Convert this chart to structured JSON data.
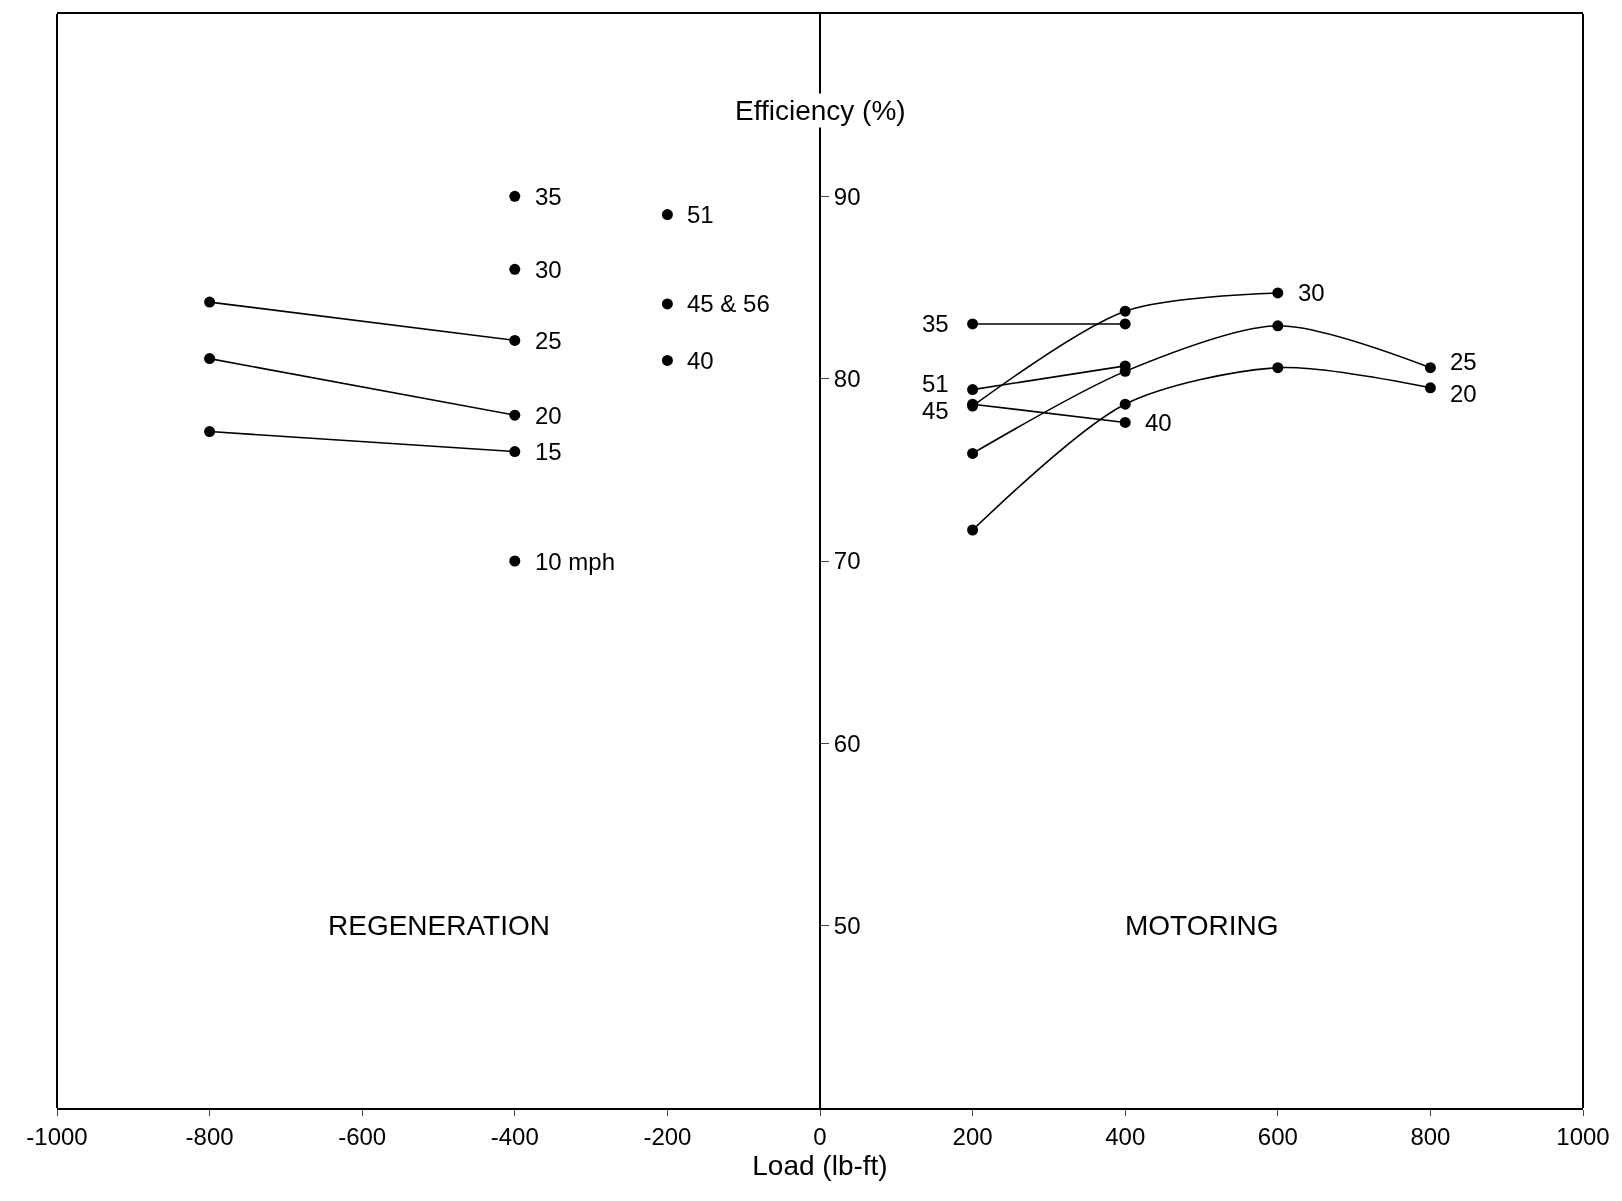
{
  "chart_data": {
    "type": "line",
    "xlabel": "Load (lb-ft)",
    "ylabel": "Efficiency (%)",
    "xlim": [
      -1000,
      1000
    ],
    "xticks": [
      -1000,
      -800,
      -600,
      -400,
      -200,
      0,
      200,
      400,
      600,
      800,
      1000
    ],
    "ylim": [
      40,
      100
    ],
    "yticks": [
      50,
      60,
      70,
      80,
      90
    ],
    "marker": "circle",
    "line_style": "solid",
    "series": [
      {
        "color": "#000000",
        "x": [
          -800,
          -400
        ],
        "values": [
          84.2,
          82.1
        ]
      },
      {
        "color": "#000000",
        "x": [
          -800,
          -400
        ],
        "values": [
          81.1,
          78.0
        ]
      },
      {
        "color": "#000000",
        "x": [
          -800,
          -400
        ],
        "values": [
          77.1,
          76.0
        ]
      },
      {
        "color": "#000000",
        "x": [
          -400
        ],
        "values": [
          90.0
        ],
        "type": "scatter"
      },
      {
        "color": "#000000",
        "x": [
          -400
        ],
        "values": [
          86.0
        ],
        "type": "scatter"
      },
      {
        "color": "#000000",
        "x": [
          -400
        ],
        "values": [
          70.0
        ],
        "type": "scatter"
      },
      {
        "color": "#000000",
        "x": [
          -200
        ],
        "values": [
          89.0
        ],
        "type": "scatter"
      },
      {
        "color": "#000000",
        "x": [
          -200
        ],
        "values": [
          84.1
        ],
        "type": "scatter"
      },
      {
        "color": "#000000",
        "x": [
          -200
        ],
        "values": [
          81.0
        ],
        "type": "scatter"
      },
      {
        "color": "#000000",
        "x": [
          200,
          400
        ],
        "values": [
          83.0,
          83.0
        ]
      },
      {
        "color": "#000000",
        "x": [
          200,
          400
        ],
        "values": [
          79.4,
          80.7
        ]
      },
      {
        "color": "#000000",
        "x": [
          200,
          400
        ],
        "values": [
          78.6,
          77.6
        ]
      },
      {
        "color": "#000000",
        "x": [
          200,
          400,
          600
        ],
        "values": [
          78.5,
          83.7,
          84.7
        ]
      },
      {
        "color": "#000000",
        "x": [
          200,
          400,
          600,
          800
        ],
        "values": [
          75.9,
          80.4,
          82.9,
          80.6
        ]
      },
      {
        "color": "#000000",
        "x": [
          200,
          400,
          600,
          800
        ],
        "values": [
          71.7,
          78.6,
          80.6,
          79.5
        ]
      }
    ],
    "annotations": [
      {
        "text": "35",
        "x": -400,
        "y": 90.0
      },
      {
        "text": "30",
        "x": -400,
        "y": 86.0
      },
      {
        "text": "25",
        "x": -400,
        "y": 82.1
      },
      {
        "text": "20",
        "x": -400,
        "y": 78.0
      },
      {
        "text": "15",
        "x": -400,
        "y": 76.0
      },
      {
        "text": "10 mph",
        "x": -400,
        "y": 70.0
      },
      {
        "text": "51",
        "x": -200,
        "y": 89.0
      },
      {
        "text": "45 & 56",
        "x": -200,
        "y": 84.1
      },
      {
        "text": "40",
        "x": -200,
        "y": 81.0
      },
      {
        "text": "35",
        "x": 200,
        "y": 83.0
      },
      {
        "text": "51",
        "x": 200,
        "y": 79.4
      },
      {
        "text": "45",
        "x": 200,
        "y": 78.6
      },
      {
        "text": "40",
        "x": 400,
        "y": 77.6
      },
      {
        "text": "30",
        "x": 600,
        "y": 84.7
      },
      {
        "text": "25",
        "x": 800,
        "y": 80.6
      },
      {
        "text": "20",
        "x": 800,
        "y": 79.5
      },
      "REGENERATION",
      "MOTORING"
    ]
  }
}
